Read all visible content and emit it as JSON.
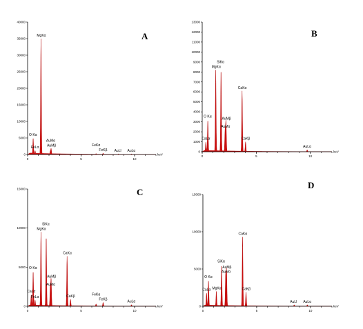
{
  "x_unit": "keV",
  "chart_data": [
    {
      "type": "area",
      "panel_label": "A",
      "ylim": [
        0,
        40000
      ],
      "xlim": [
        0,
        12
      ],
      "y_ticks": [
        "0",
        "5000",
        "10000",
        "15000",
        "20000",
        "25000",
        "30000",
        "35000",
        "40000"
      ],
      "y_tick_values": [
        0,
        5000,
        10000,
        15000,
        20000,
        25000,
        30000,
        35000,
        40000
      ],
      "x_ticks": [
        "0",
        "5",
        "10"
      ],
      "x_tick_values": [
        0,
        5,
        10
      ],
      "x_unit_label": "keV",
      "peaks": [
        {
          "label": "O Kα",
          "x": 0.52,
          "y": 5000
        },
        {
          "label": "FeLα",
          "x": 0.7,
          "y": 1200
        },
        {
          "label": "MgKα",
          "x": 1.25,
          "y": 35000
        },
        {
          "label": "AuMβ",
          "x": 2.2,
          "y": 1800
        },
        {
          "label": "AuMα",
          "x": 2.12,
          "y": 1000
        },
        {
          "label": "FeKβ",
          "x": 7.06,
          "y": 400
        },
        {
          "label": "FeKα",
          "x": 6.4,
          "y": 300
        },
        {
          "label": "AuLl",
          "x": 8.49,
          "y": 200
        },
        {
          "label": "AuLα",
          "x": 9.71,
          "y": 200
        }
      ]
    },
    {
      "type": "area",
      "panel_label": "B",
      "ylim": [
        0,
        13000
      ],
      "xlim": [
        0,
        12
      ],
      "y_ticks": [
        "0",
        "1000",
        "2000",
        "3000",
        "4000",
        "5000",
        "6000",
        "7000",
        "8000",
        "9000",
        "10000",
        "11000",
        "12000",
        "13000"
      ],
      "y_tick_values": [
        0,
        1000,
        2000,
        3000,
        4000,
        5000,
        6000,
        7000,
        8000,
        9000,
        10000,
        11000,
        12000,
        13000
      ],
      "x_ticks": [
        "0",
        "5",
        "10"
      ],
      "x_tick_values": [
        0,
        5,
        10
      ],
      "x_unit_label": "keV",
      "peaks": [
        {
          "label": "CaLα",
          "x": 0.34,
          "y": 1000
        },
        {
          "label": "O Kα",
          "x": 0.52,
          "y": 3200
        },
        {
          "label": "MgKα",
          "x": 1.25,
          "y": 8200
        },
        {
          "label": "SiKα",
          "x": 1.74,
          "y": 8300
        },
        {
          "label": "AuMβ",
          "x": 2.2,
          "y": 3000
        },
        {
          "label": "AuMα",
          "x": 2.12,
          "y": 2200
        },
        {
          "label": "CaKα",
          "x": 3.69,
          "y": 6100
        },
        {
          "label": "CaKβ",
          "x": 4.01,
          "y": 1000
        },
        {
          "label": "AuLα",
          "x": 9.71,
          "y": 200
        }
      ]
    },
    {
      "type": "area",
      "panel_label": "C",
      "ylim": [
        0,
        15000
      ],
      "xlim": [
        0,
        12
      ],
      "y_ticks": [
        "0",
        "5000",
        "10000",
        "15000"
      ],
      "y_tick_values": [
        0,
        5000,
        10000,
        15000
      ],
      "x_ticks": [
        "0",
        "5",
        "10"
      ],
      "x_tick_values": [
        0,
        5,
        10
      ],
      "x_unit_label": "keV",
      "peaks": [
        {
          "label": "CaLα",
          "x": 0.34,
          "y": 1500
        },
        {
          "label": "O Kα",
          "x": 0.52,
          "y": 4500
        },
        {
          "label": "FeLα",
          "x": 0.7,
          "y": 800
        },
        {
          "label": "MgKα",
          "x": 1.25,
          "y": 9500
        },
        {
          "label": "SiKα",
          "x": 1.74,
          "y": 9000
        },
        {
          "label": "AuMβ",
          "x": 2.2,
          "y": 3400
        },
        {
          "label": "AuMα",
          "x": 2.12,
          "y": 2400
        },
        {
          "label": "CaKα",
          "x": 3.69,
          "y": 6400
        },
        {
          "label": "CaKβ",
          "x": 4.01,
          "y": 900
        },
        {
          "label": "FeKβ",
          "x": 7.06,
          "y": 500
        },
        {
          "label": "FeKα",
          "x": 6.4,
          "y": 300
        },
        {
          "label": "AuLα",
          "x": 9.71,
          "y": 200
        }
      ]
    },
    {
      "type": "area",
      "panel_label": "D",
      "ylim": [
        0,
        15000
      ],
      "xlim": [
        0,
        12
      ],
      "y_ticks": [
        "0",
        "5000",
        "10000",
        "15000"
      ],
      "y_tick_values": [
        0,
        5000,
        10000,
        15000
      ],
      "x_ticks": [
        "0",
        "5",
        "10"
      ],
      "x_tick_values": [
        0,
        5,
        10
      ],
      "x_unit_label": "keV",
      "peaks": [
        {
          "label": "CaLα",
          "x": 0.34,
          "y": 1800
        },
        {
          "label": "O Kα",
          "x": 0.52,
          "y": 3500
        },
        {
          "label": "MgKα",
          "x": 1.25,
          "y": 2000
        },
        {
          "label": "SiKα",
          "x": 1.74,
          "y": 5600
        },
        {
          "label": "AuMβ",
          "x": 2.2,
          "y": 4800
        },
        {
          "label": "AuMα",
          "x": 2.12,
          "y": 4200
        },
        {
          "label": "CaKα",
          "x": 3.69,
          "y": 9300
        },
        {
          "label": "CaKβ",
          "x": 4.01,
          "y": 1900
        },
        {
          "label": "AuLl",
          "x": 8.49,
          "y": 200
        },
        {
          "label": "AuLα",
          "x": 9.71,
          "y": 200
        }
      ]
    }
  ]
}
